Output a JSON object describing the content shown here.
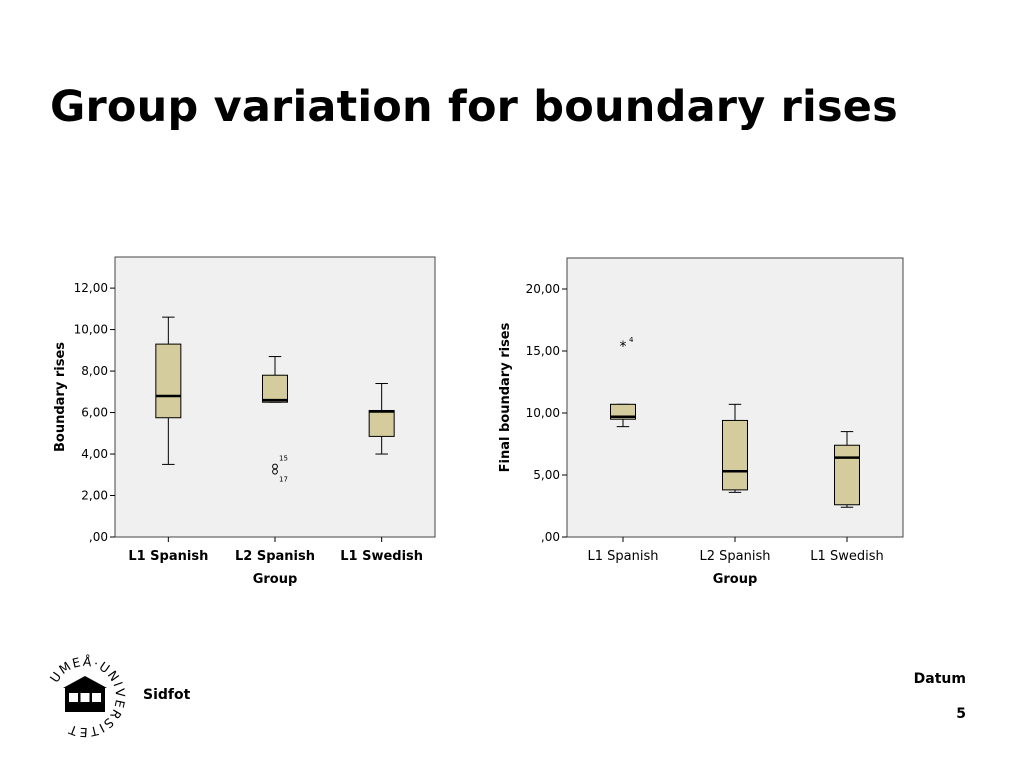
{
  "slide": {
    "title": "Group variation for boundary rises",
    "footer": "Sidfot",
    "date": "Datum",
    "page_number": "5",
    "logo_text": "UMEÅ UNIVERSITET"
  },
  "colors": {
    "box_fill": "#d4cc9c",
    "plot_bg": "#f0f0f0",
    "line": "#000000"
  },
  "chart_data": [
    {
      "type": "boxplot",
      "xlabel": "Group",
      "ylabel": "Boundary rises",
      "ylim": [
        0,
        13.5
      ],
      "yticks": [
        ",00",
        "2,00",
        "4,00",
        "6,00",
        "8,00",
        "10,00",
        "12,00"
      ],
      "ytick_values": [
        0,
        2,
        4,
        6,
        8,
        10,
        12
      ],
      "bold_category_labels": true,
      "categories": [
        "L1 Spanish",
        "L2 Spanish",
        "L1 Swedish"
      ],
      "boxes": [
        {
          "whisker_low": 3.5,
          "q1": 5.75,
          "median": 6.8,
          "q3": 9.3,
          "whisker_high": 10.6
        },
        {
          "whisker_low": 6.5,
          "q1": 6.5,
          "median": 6.6,
          "q3": 7.8,
          "whisker_high": 8.7
        },
        {
          "whisker_low": 4.0,
          "q1": 4.85,
          "median": 6.05,
          "q3": 6.1,
          "whisker_high": 7.4
        }
      ],
      "outliers": [
        {
          "category": "L2 Spanish",
          "value": 3.4,
          "label": "15",
          "marker": "o"
        },
        {
          "category": "L2 Spanish",
          "value": 3.15,
          "label": "17",
          "marker": "o"
        }
      ]
    },
    {
      "type": "boxplot",
      "xlabel": "Group",
      "ylabel": "Final boundary rises",
      "ylim": [
        0,
        22.5
      ],
      "yticks": [
        ",00",
        "5,00",
        "10,00",
        "15,00",
        "20,00"
      ],
      "ytick_values": [
        0,
        5,
        10,
        15,
        20
      ],
      "bold_category_labels": false,
      "categories": [
        "L1 Spanish",
        "L2 Spanish",
        "L1 Swedish"
      ],
      "boxes": [
        {
          "whisker_low": 8.9,
          "q1": 9.5,
          "median": 9.7,
          "q3": 10.7,
          "whisker_high": 10.7
        },
        {
          "whisker_low": 3.6,
          "q1": 3.8,
          "median": 5.3,
          "q3": 9.4,
          "whisker_high": 10.7
        },
        {
          "whisker_low": 2.4,
          "q1": 2.6,
          "median": 6.4,
          "q3": 7.4,
          "whisker_high": 8.5
        }
      ],
      "outliers": [
        {
          "category": "L1 Spanish",
          "value": 15.5,
          "label": "4",
          "marker": "*"
        }
      ]
    }
  ]
}
